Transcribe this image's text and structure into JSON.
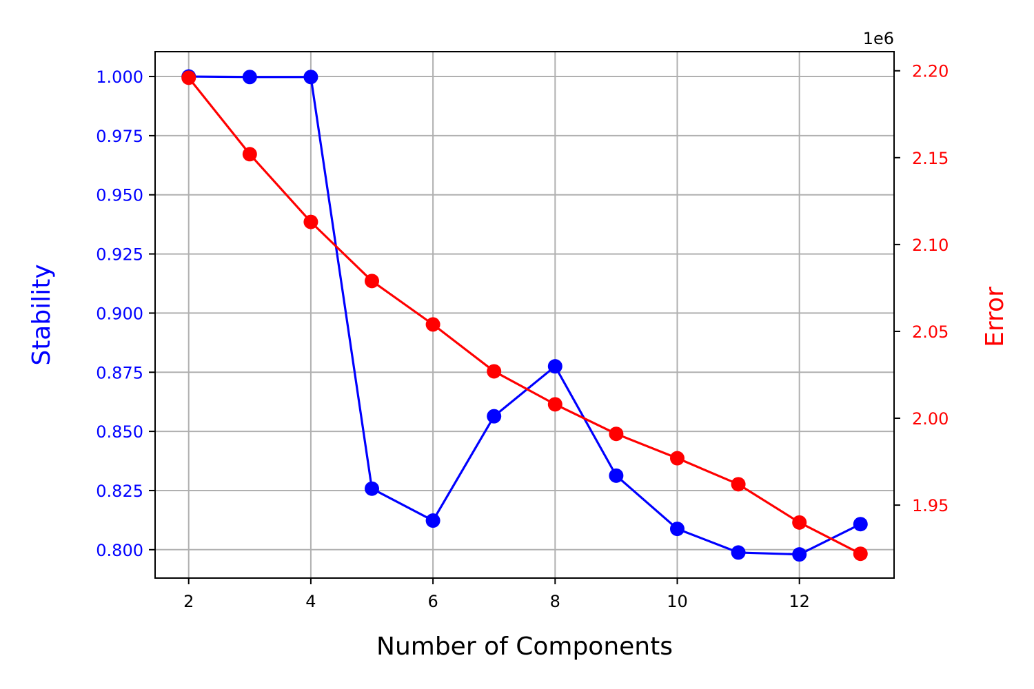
{
  "chart_data": {
    "type": "line",
    "title": "",
    "xlabel": "Number of Components",
    "x": [
      2,
      3,
      4,
      5,
      6,
      7,
      8,
      9,
      10,
      11,
      12,
      13
    ],
    "xlim": [
      1.45,
      13.55
    ],
    "xticks": [
      2,
      4,
      6,
      8,
      10,
      12
    ],
    "grid": true,
    "legend": "none",
    "y_left": {
      "label": "Stability",
      "color": "#0000ff",
      "lim": [
        0.788,
        1.0105
      ],
      "ticks": [
        0.8,
        0.825,
        0.85,
        0.875,
        0.9,
        0.925,
        0.95,
        0.975,
        1.0
      ],
      "tick_labels": [
        "0.800",
        "0.825",
        "0.850",
        "0.875",
        "0.900",
        "0.925",
        "0.950",
        "0.975",
        "1.000"
      ]
    },
    "y_right": {
      "label": "Error",
      "color": "#ff0000",
      "offset_label": "1e6",
      "lim": [
        1.908,
        2.211
      ],
      "ticks": [
        1.95,
        2.0,
        2.05,
        2.1,
        2.15,
        2.2
      ],
      "tick_labels": [
        "1.95",
        "2.00",
        "2.05",
        "2.10",
        "2.15",
        "2.20"
      ]
    },
    "series": [
      {
        "axis": "left",
        "color": "#0000ff",
        "values": [
          1.0,
          0.9998,
          0.9998,
          0.8258,
          0.8123,
          0.8564,
          0.8775,
          0.8313,
          0.8088,
          0.7988,
          0.798,
          0.8108
        ]
      },
      {
        "axis": "right",
        "color": "#ff0000",
        "values": [
          2.196,
          2.152,
          2.113,
          2.079,
          2.054,
          2.027,
          2.008,
          1.991,
          1.977,
          1.962,
          1.94,
          1.922
        ]
      }
    ]
  }
}
